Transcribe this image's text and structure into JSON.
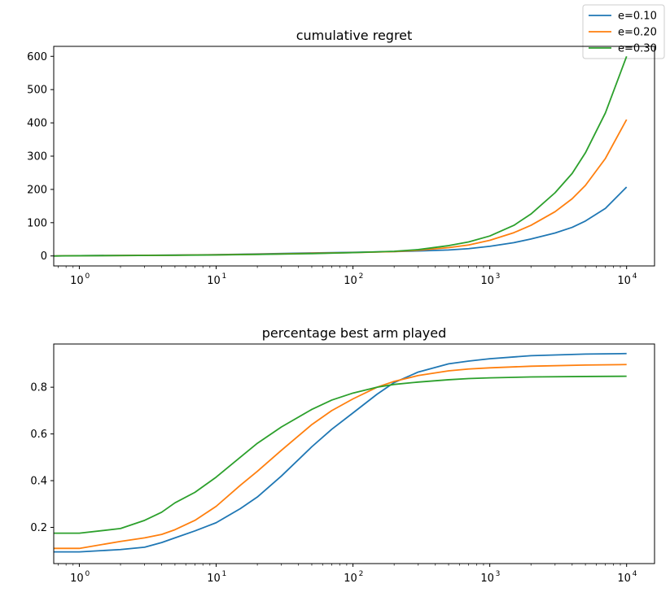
{
  "legend": {
    "placement": "top-right",
    "entries": [
      {
        "label": "e=0.10",
        "color": "#1f77b4"
      },
      {
        "label": "e=0.20",
        "color": "#ff7f0e"
      },
      {
        "label": "e=0.30",
        "color": "#2ca02c"
      }
    ]
  },
  "chart_data": [
    {
      "type": "line",
      "title": "cumulative regret",
      "xlabel": "",
      "ylabel": "",
      "xscale": "log",
      "xlim": [
        0.65,
        16000
      ],
      "ylim": [
        -30,
        630
      ],
      "grid": false,
      "x_ticks": [
        {
          "value": 1,
          "label": "10",
          "exp": "0"
        },
        {
          "value": 10,
          "label": "10",
          "exp": "1"
        },
        {
          "value": 100,
          "label": "10",
          "exp": "2"
        },
        {
          "value": 1000,
          "label": "10",
          "exp": "3"
        },
        {
          "value": 10000,
          "label": "10",
          "exp": "4"
        }
      ],
      "y_ticks": [
        0,
        100,
        200,
        300,
        400,
        500,
        600
      ],
      "x": [
        0.65,
        1,
        2,
        5,
        10,
        20,
        50,
        100,
        200,
        300,
        500,
        700,
        1000,
        1500,
        2000,
        3000,
        4000,
        5000,
        7000,
        10000
      ],
      "series": [
        {
          "name": "e=0.10",
          "color": "#1f77b4",
          "values": [
            0,
            0.9,
            1.5,
            2.5,
            4,
            6,
            9,
            11,
            13,
            15,
            18,
            22,
            29,
            40,
            51,
            69,
            86,
            105,
            143,
            207
          ]
        },
        {
          "name": "e=0.20",
          "color": "#ff7f0e",
          "values": [
            0,
            0.8,
            1.3,
            2.3,
            3.5,
            5,
            8,
            10,
            13,
            17,
            25,
            33,
            47,
            70,
            92,
            133,
            172,
            212,
            293,
            410
          ]
        },
        {
          "name": "e=0.30",
          "color": "#2ca02c",
          "values": [
            0,
            0.7,
            1.2,
            2,
            3,
            4.5,
            7,
            10,
            14,
            19,
            31,
            42,
            60,
            92,
            126,
            190,
            248,
            310,
            430,
            600
          ]
        }
      ]
    },
    {
      "type": "line",
      "title": "percentage best arm played",
      "xlabel": "",
      "ylabel": "",
      "xscale": "log",
      "xlim": [
        0.65,
        16000
      ],
      "ylim": [
        0.045,
        0.985
      ],
      "grid": false,
      "x_ticks": [
        {
          "value": 1,
          "label": "10",
          "exp": "0"
        },
        {
          "value": 10,
          "label": "10",
          "exp": "1"
        },
        {
          "value": 100,
          "label": "10",
          "exp": "2"
        },
        {
          "value": 1000,
          "label": "10",
          "exp": "3"
        },
        {
          "value": 10000,
          "label": "10",
          "exp": "4"
        }
      ],
      "y_ticks": [
        0.2,
        0.4,
        0.6,
        0.8
      ],
      "x": [
        0.65,
        1,
        2,
        3,
        4,
        5,
        7,
        10,
        15,
        20,
        30,
        50,
        70,
        100,
        150,
        200,
        300,
        500,
        700,
        1000,
        2000,
        5000,
        10000
      ],
      "series": [
        {
          "name": "e=0.10",
          "color": "#1f77b4",
          "values": [
            0.095,
            0.095,
            0.105,
            0.115,
            0.135,
            0.155,
            0.185,
            0.22,
            0.28,
            0.33,
            0.42,
            0.545,
            0.62,
            0.69,
            0.77,
            0.82,
            0.865,
            0.9,
            0.912,
            0.922,
            0.935,
            0.942,
            0.944
          ]
        },
        {
          "name": "e=0.20",
          "color": "#ff7f0e",
          "values": [
            0.11,
            0.11,
            0.14,
            0.155,
            0.17,
            0.19,
            0.23,
            0.29,
            0.38,
            0.44,
            0.53,
            0.64,
            0.7,
            0.75,
            0.8,
            0.825,
            0.85,
            0.87,
            0.878,
            0.883,
            0.89,
            0.895,
            0.897
          ]
        },
        {
          "name": "e=0.30",
          "color": "#2ca02c",
          "values": [
            0.175,
            0.175,
            0.195,
            0.23,
            0.265,
            0.305,
            0.35,
            0.415,
            0.5,
            0.56,
            0.63,
            0.705,
            0.745,
            0.775,
            0.8,
            0.812,
            0.822,
            0.832,
            0.837,
            0.84,
            0.844,
            0.846,
            0.847
          ]
        }
      ]
    }
  ]
}
